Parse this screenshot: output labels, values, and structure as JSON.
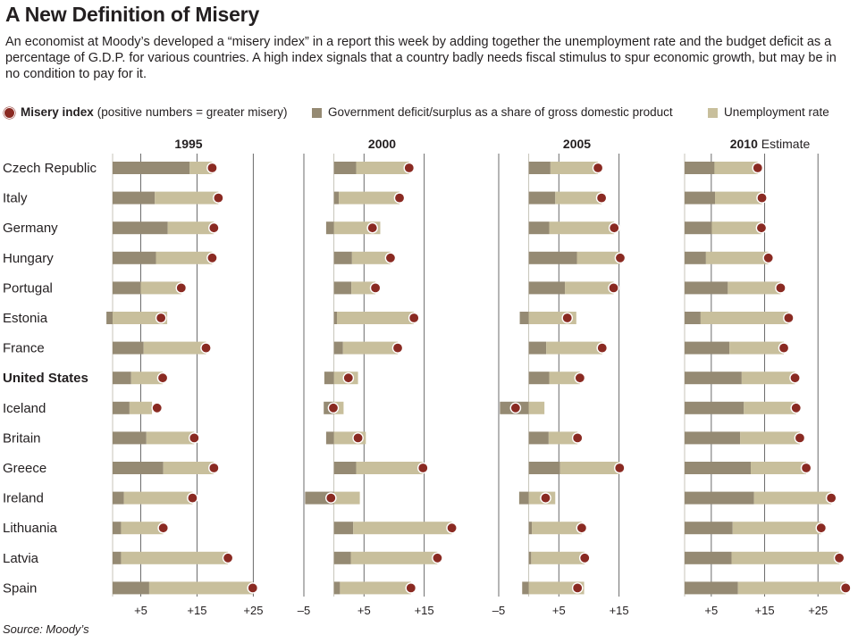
{
  "title": "A New Definition of Misery",
  "intro": "An economist at Moody’s developed a “misery index” in a report this week by adding together the unemployment rate and the budget deficit as a percentage of G.D.P. for various countries. A high index signals that a country badly needs fiscal stimulus to spur economic growth, but may be in no condition to pay for it.",
  "legend": {
    "misery_bold": "Misery index",
    "misery_note": "(positive numbers = greater misery)",
    "deficit": "Government deficit/surplus as a share of gross domestic product",
    "unemployment": "Unemployment rate"
  },
  "colors": {
    "deficit": "#958a73",
    "unemployment": "#c8bf9c",
    "misery": "#8a2a22",
    "grid": "#6b6b6b"
  },
  "source": "Source: Moody’s",
  "chart_data": {
    "type": "bar",
    "subtype": "stacked-horizontal-with-dot",
    "countries": [
      "Czech Republic",
      "Italy",
      "Germany",
      "Hungary",
      "Portugal",
      "Estonia",
      "France",
      "United States",
      "Iceland",
      "Britain",
      "Greece",
      "Ireland",
      "Lithuania",
      "Latvia",
      "Spain"
    ],
    "highlighted_country": "United States",
    "series": [
      {
        "name": "Government deficit/surplus as a share of gross domestic product"
      },
      {
        "name": "Unemployment rate"
      },
      {
        "name": "Misery index"
      }
    ],
    "panels": [
      {
        "year": "1995",
        "year_suffix": "",
        "xlim": [
          0,
          27
        ],
        "gridlines": [
          5,
          15,
          25
        ],
        "tick_labels": [
          "+5",
          "+15",
          "+25"
        ],
        "deficit": [
          13.7,
          7.5,
          9.8,
          7.7,
          5.0,
          -1.1,
          5.5,
          3.3,
          3.0,
          6.0,
          9.0,
          2.0,
          1.5,
          1.5,
          6.5
        ],
        "unemployment": [
          4.0,
          11.3,
          8.2,
          10.0,
          7.2,
          9.7,
          11.1,
          5.6,
          4.0,
          8.5,
          9.0,
          12.2,
          7.5,
          19.0,
          18.4
        ],
        "misery": [
          17.7,
          18.8,
          18.0,
          17.7,
          12.2,
          8.6,
          16.6,
          8.9,
          7.9,
          14.5,
          18.0,
          14.2,
          9.0,
          20.5,
          24.9
        ]
      },
      {
        "year": "2000",
        "year_suffix": "",
        "xlim": [
          -5,
          21
        ],
        "gridlines": [
          -5,
          5,
          15
        ],
        "tick_labels": [
          "–5",
          "+5",
          "+15"
        ],
        "deficit": [
          3.7,
          0.8,
          -1.3,
          3.0,
          2.9,
          0.5,
          1.5,
          -1.6,
          -1.7,
          -1.3,
          3.7,
          -4.8,
          3.2,
          2.8,
          1.0
        ],
        "unemployment": [
          8.8,
          10.1,
          7.7,
          6.4,
          4.0,
          12.8,
          9.1,
          4.0,
          1.6,
          5.3,
          11.1,
          4.3,
          16.4,
          14.4,
          11.8
        ],
        "misery": [
          12.5,
          10.9,
          6.4,
          9.4,
          6.9,
          13.3,
          10.6,
          2.4,
          -0.1,
          4.0,
          14.8,
          -0.5,
          19.6,
          17.2,
          12.8
        ]
      },
      {
        "year": "2005",
        "year_suffix": "",
        "xlim": [
          -5,
          21
        ],
        "gridlines": [
          -5,
          5,
          15
        ],
        "tick_labels": [
          "–5",
          "+5",
          "+15"
        ],
        "deficit": [
          3.6,
          4.4,
          3.4,
          8.0,
          6.0,
          -1.5,
          2.9,
          3.4,
          -4.8,
          3.3,
          5.2,
          -1.6,
          0.5,
          0.4,
          -1.1
        ],
        "unemployment": [
          7.9,
          7.7,
          10.8,
          7.2,
          8.1,
          7.9,
          9.3,
          5.1,
          2.6,
          4.8,
          9.9,
          4.4,
          8.3,
          8.9,
          9.2
        ],
        "misery": [
          11.5,
          12.1,
          14.2,
          15.2,
          14.1,
          6.4,
          12.2,
          8.5,
          -2.2,
          8.1,
          15.1,
          2.8,
          8.8,
          9.3,
          8.1
        ]
      },
      {
        "year": "2010",
        "year_suffix": "Estimate",
        "xlim": [
          0,
          32
        ],
        "gridlines": [
          5,
          15,
          25
        ],
        "tick_labels": [
          "+5",
          "+15",
          "+25"
        ],
        "deficit": [
          5.6,
          5.7,
          5.1,
          4.0,
          8.1,
          3.0,
          8.4,
          10.7,
          11.1,
          10.4,
          12.4,
          13.0,
          9.0,
          8.8,
          10.0
        ],
        "unemployment": [
          8.1,
          8.8,
          9.3,
          11.7,
          9.9,
          16.5,
          10.2,
          10.0,
          9.8,
          11.2,
          10.4,
          14.5,
          16.6,
          20.2,
          20.2
        ],
        "misery": [
          13.7,
          14.5,
          14.4,
          15.7,
          18.0,
          19.5,
          18.6,
          20.7,
          20.9,
          21.6,
          22.8,
          27.5,
          25.6,
          29.0,
          30.2
        ]
      }
    ]
  }
}
